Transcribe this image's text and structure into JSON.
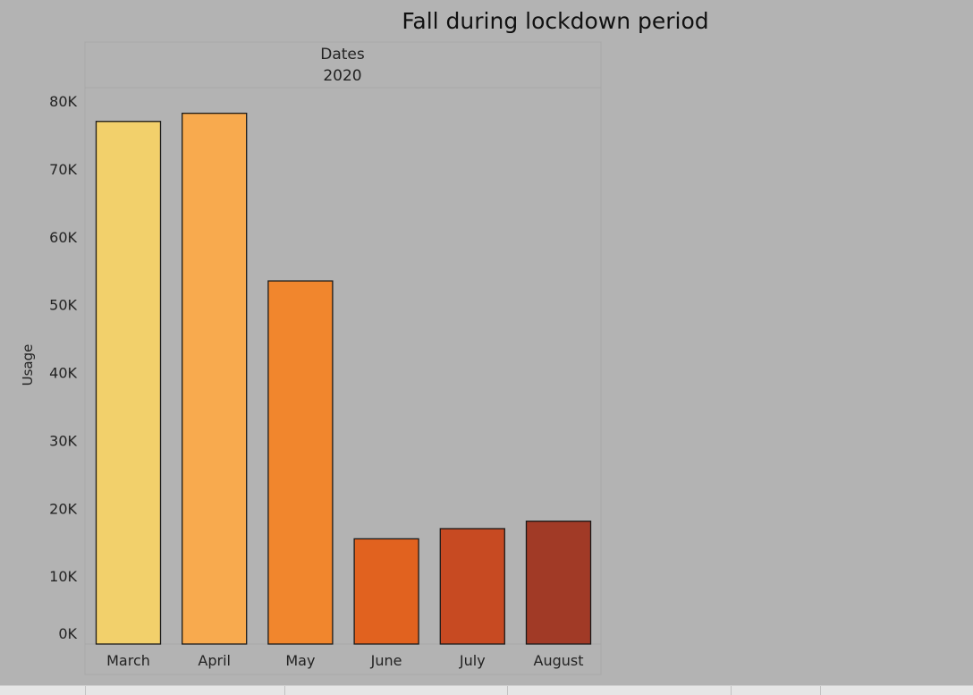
{
  "chart_data": {
    "type": "bar",
    "title": "Fall during lockdown period",
    "header_label": "Dates",
    "header_value": "2020",
    "xlabel": "",
    "ylabel": "Usage",
    "categories": [
      "March",
      "April",
      "May",
      "June",
      "July",
      "August"
    ],
    "values": [
      77000,
      78200,
      53500,
      15500,
      17000,
      18100
    ],
    "ylim": [
      0,
      80000
    ],
    "yticks": [
      0,
      10000,
      20000,
      30000,
      40000,
      50000,
      60000,
      70000,
      80000
    ],
    "ytick_labels": [
      "0K",
      "10K",
      "20K",
      "30K",
      "40K",
      "50K",
      "60K",
      "70K",
      "80K"
    ],
    "colors": [
      "#f2d06b",
      "#f8aa4e",
      "#f1862d",
      "#e1621f",
      "#c74a22",
      "#a13a26"
    ],
    "grid": false,
    "background": "#b3b3b3"
  }
}
